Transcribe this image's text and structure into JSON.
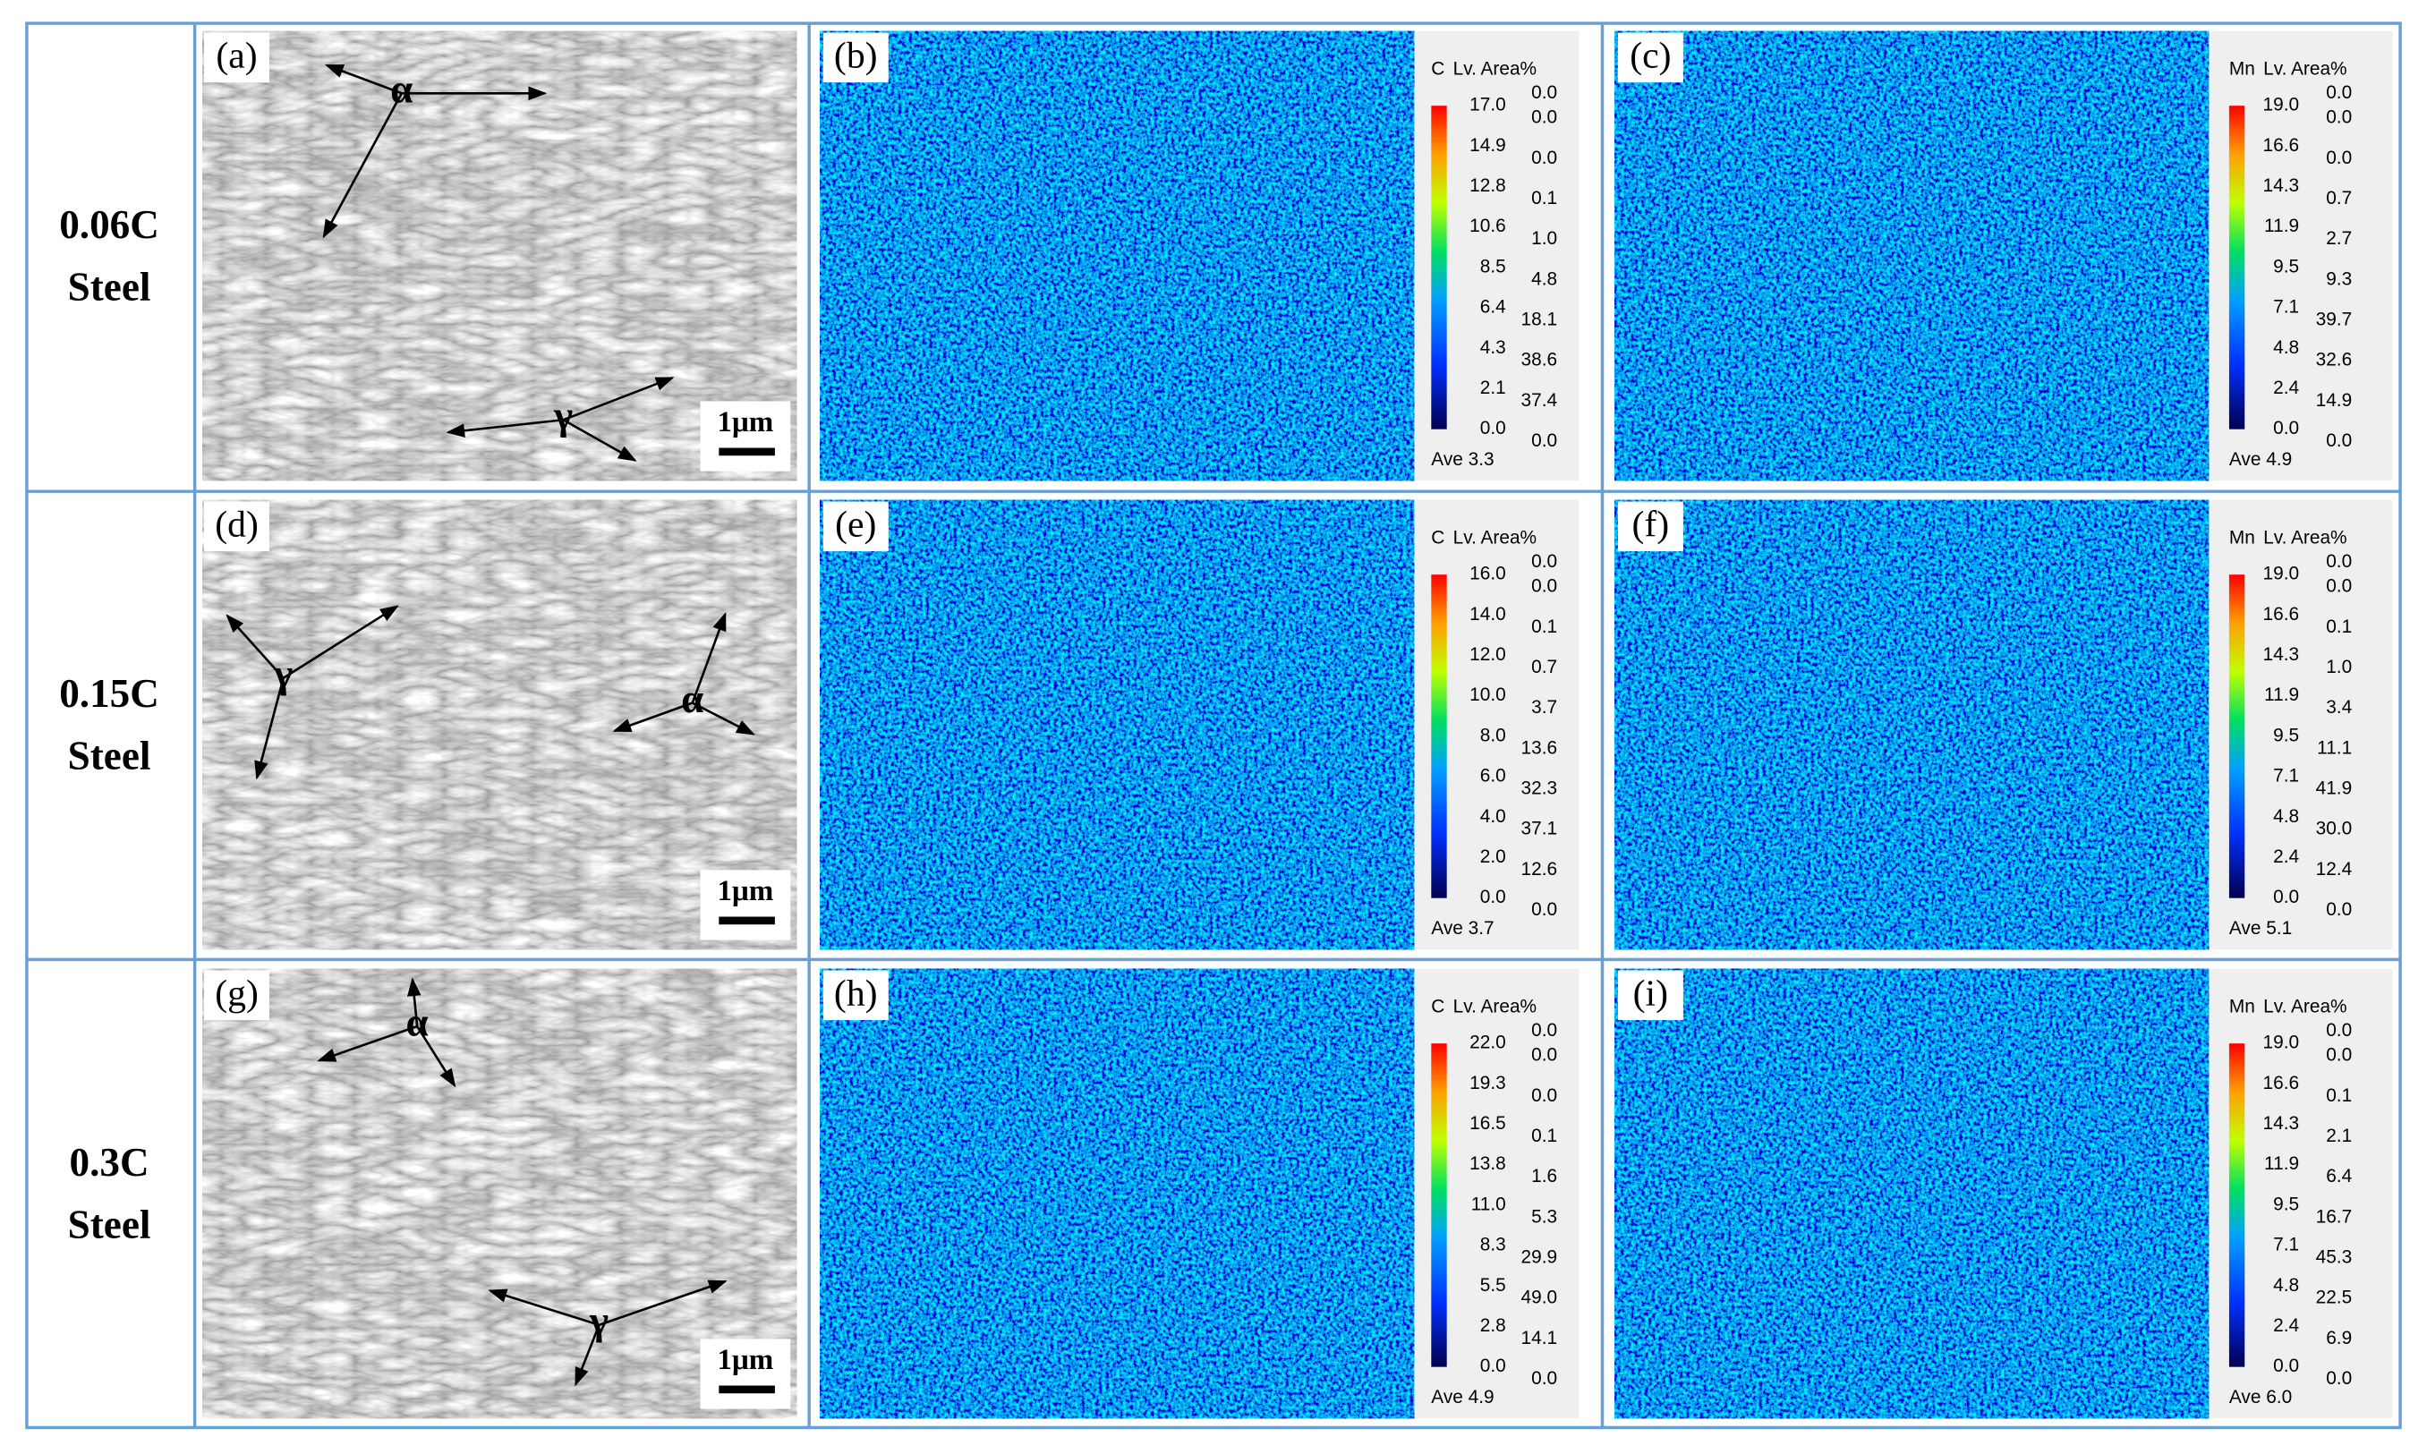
{
  "rows": [
    {
      "label": [
        "0.06C",
        "Steel"
      ],
      "sem": {
        "panel": "(a)",
        "alpha": "α",
        "gamma": "γ",
        "scale": "1μm"
      },
      "maps": [
        {
          "panel": "(b)",
          "element": "C",
          "header": "Lv. Area%",
          "levels": [
            "17.0",
            "14.9",
            "12.8",
            "10.6",
            "8.5",
            "6.4",
            "4.3",
            "2.1",
            "0.0"
          ],
          "areas": [
            "0.0",
            "0.0",
            "0.0",
            "0.1",
            "1.0",
            "4.8",
            "18.1",
            "38.6",
            "37.4",
            "0.0"
          ],
          "ave": "Ave 3.3"
        },
        {
          "panel": "(c)",
          "element": "Mn",
          "header": "Lv. Area%",
          "levels": [
            "19.0",
            "16.6",
            "14.3",
            "11.9",
            "9.5",
            "7.1",
            "4.8",
            "2.4",
            "0.0"
          ],
          "areas": [
            "0.0",
            "0.0",
            "0.0",
            "0.7",
            "2.7",
            "9.3",
            "39.7",
            "32.6",
            "14.9",
            "0.0"
          ],
          "ave": "Ave 4.9"
        }
      ]
    },
    {
      "label": [
        "0.15C",
        "Steel"
      ],
      "sem": {
        "panel": "(d)",
        "alpha": "α",
        "gamma": "γ",
        "scale": "1μm"
      },
      "maps": [
        {
          "panel": "(e)",
          "element": "C",
          "header": "Lv. Area%",
          "levels": [
            "16.0",
            "14.0",
            "12.0",
            "10.0",
            "8.0",
            "6.0",
            "4.0",
            "2.0",
            "0.0"
          ],
          "areas": [
            "0.0",
            "0.0",
            "0.1",
            "0.7",
            "3.7",
            "13.6",
            "32.3",
            "37.1",
            "12.6",
            "0.0"
          ],
          "ave": "Ave 3.7"
        },
        {
          "panel": "(f)",
          "element": "Mn",
          "header": "Lv. Area%",
          "levels": [
            "19.0",
            "16.6",
            "14.3",
            "11.9",
            "9.5",
            "7.1",
            "4.8",
            "2.4",
            "0.0"
          ],
          "areas": [
            "0.0",
            "0.0",
            "0.1",
            "1.0",
            "3.4",
            "11.1",
            "41.9",
            "30.0",
            "12.4",
            "0.0"
          ],
          "ave": "Ave 5.1"
        }
      ]
    },
    {
      "label": [
        "0.3C",
        "Steel"
      ],
      "sem": {
        "panel": "(g)",
        "alpha": "α",
        "gamma": "γ",
        "scale": "1μm"
      },
      "maps": [
        {
          "panel": "(h)",
          "element": "C",
          "header": "Lv. Area%",
          "levels": [
            "22.0",
            "19.3",
            "16.5",
            "13.8",
            "11.0",
            "8.3",
            "5.5",
            "2.8",
            "0.0"
          ],
          "areas": [
            "0.0",
            "0.0",
            "0.0",
            "0.1",
            "1.6",
            "5.3",
            "29.9",
            "49.0",
            "14.1",
            "0.0"
          ],
          "ave": "Ave 4.9"
        },
        {
          "panel": "(i)",
          "element": "Mn",
          "header": "Lv. Area%",
          "levels": [
            "19.0",
            "16.6",
            "14.3",
            "11.9",
            "9.5",
            "7.1",
            "4.8",
            "2.4",
            "0.0"
          ],
          "areas": [
            "0.0",
            "0.0",
            "0.1",
            "2.1",
            "6.4",
            "16.7",
            "45.3",
            "22.5",
            "6.9",
            "0.0"
          ],
          "ave": "Ave 6.0"
        }
      ]
    }
  ]
}
